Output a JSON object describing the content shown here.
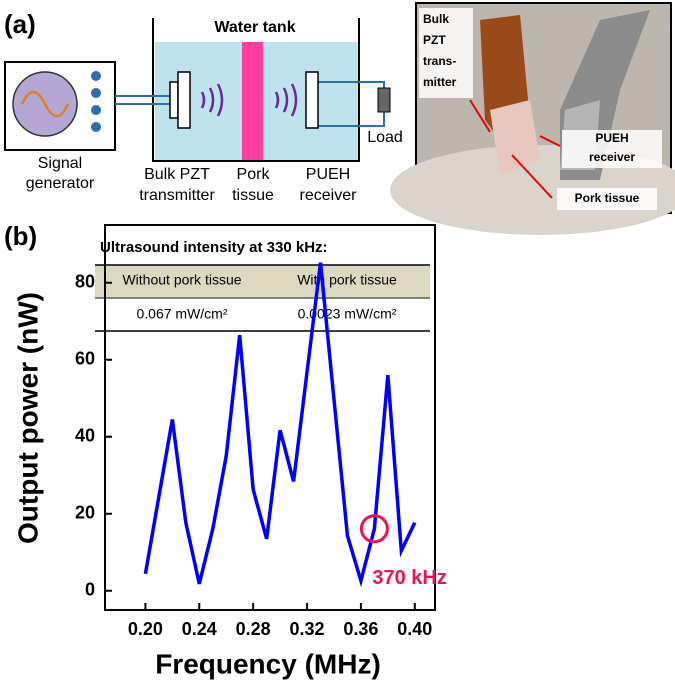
{
  "diagram": {
    "panel_a": "(a)",
    "water_tank": "Water tank",
    "signal_generator": [
      "Signal",
      "generator"
    ],
    "transmitter": [
      "Bulk PZT",
      "transmitter"
    ],
    "pork_tissue": [
      "Pork",
      "tissue"
    ],
    "receiver": [
      "PUEH",
      "receiver"
    ],
    "load": "Load",
    "photo_labels": {
      "transmitter": [
        "Bulk",
        "PZT",
        "trans-",
        "mitter"
      ],
      "receiver": [
        "PUEH",
        "receiver"
      ],
      "pork_tissue": "Pork tissue"
    }
  },
  "chart_data": {
    "type": "line",
    "panel_label": "(b)",
    "x_label": "Frequency (MHz)",
    "y_label": "Output power (nW)",
    "x": [
      0.2,
      0.22,
      0.23,
      0.24,
      0.25,
      0.26,
      0.27,
      0.28,
      0.29,
      0.3,
      0.31,
      0.33,
      0.35,
      0.36,
      0.37,
      0.38,
      0.39,
      0.4
    ],
    "values": [
      4.4,
      44.5,
      17.7,
      1.8,
      16,
      35,
      66.4,
      26.3,
      13.5,
      41.7,
      28.4,
      85.2,
      14.3,
      2.6,
      16.1,
      56,
      10.4,
      17.7
    ],
    "color": "#0000ff",
    "xlim": [
      0.17,
      0.415
    ],
    "ylim": [
      -5,
      95
    ],
    "xticks": [
      {
        "value": 0.2,
        "label": "0.20"
      },
      {
        "value": 0.24,
        "label": "0.24"
      },
      {
        "value": 0.28,
        "label": "0.28"
      },
      {
        "value": 0.32,
        "label": "0.32"
      },
      {
        "value": 0.36,
        "label": "0.36"
      },
      {
        "value": 0.4,
        "label": "0.40"
      }
    ],
    "yticks": [
      0,
      20,
      40,
      60,
      80
    ],
    "annotation": {
      "text": "370 kHz",
      "x": 0.37,
      "color": "#ee1155"
    },
    "inset_table": {
      "title": "Ultrasound intensity at 330 kHz:",
      "header": [
        "Without pork tissue",
        "With pork tissue"
      ],
      "rows": [
        [
          "0.067 mW/cm²",
          "0.0023 mW/cm²"
        ]
      ]
    }
  }
}
